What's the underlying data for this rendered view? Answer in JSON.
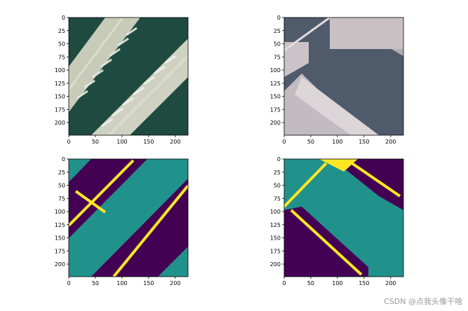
{
  "chart_data": [
    {
      "type": "image",
      "content": "aerial-photo",
      "palette": "teal-water",
      "xlim": [
        0,
        224
      ],
      "ylim": [
        224,
        0
      ],
      "xticks": [
        "0",
        "50",
        "100",
        "150",
        "200"
      ],
      "yticks": [
        "0",
        "25",
        "50",
        "75",
        "100",
        "125",
        "150",
        "175",
        "200"
      ]
    },
    {
      "type": "image",
      "content": "aerial-photo",
      "palette": "gray-water",
      "xlim": [
        0,
        224
      ],
      "ylim": [
        224,
        0
      ],
      "xticks": [
        "0",
        "50",
        "100",
        "150",
        "200"
      ],
      "yticks": [
        "0",
        "25",
        "50",
        "75",
        "100",
        "125",
        "150",
        "175",
        "200"
      ]
    },
    {
      "type": "heatmap",
      "content": "segmentation-mask",
      "colormap": "viridis",
      "xlim": [
        0,
        224
      ],
      "ylim": [
        224,
        0
      ],
      "xticks": [
        "0",
        "50",
        "100",
        "150",
        "200"
      ],
      "yticks": [
        "0",
        "25",
        "50",
        "75",
        "100",
        "125",
        "150",
        "175",
        "200"
      ],
      "class_colors": [
        "#440154",
        "#21918c",
        "#fde725"
      ]
    },
    {
      "type": "heatmap",
      "content": "segmentation-mask",
      "colormap": "viridis",
      "xlim": [
        0,
        224
      ],
      "ylim": [
        224,
        0
      ],
      "xticks": [
        "0",
        "50",
        "100",
        "150",
        "200"
      ],
      "yticks": [
        "0",
        "25",
        "50",
        "75",
        "100",
        "125",
        "150",
        "175",
        "200"
      ],
      "class_colors": [
        "#440154",
        "#21918c",
        "#fde725"
      ]
    }
  ],
  "watermark": "CSDN @点我头像干啥"
}
